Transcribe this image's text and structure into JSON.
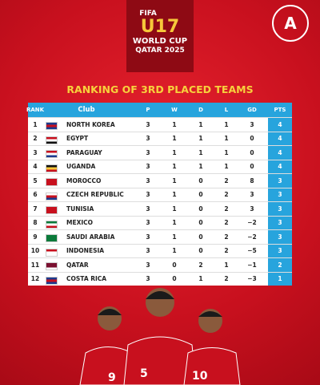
{
  "logo": {
    "brand": "FIFA",
    "event": "U17",
    "line1": "WORLD CUP",
    "line2": "QATAR 2025"
  },
  "title": "RANKING OF 3RD PLACED TEAMS",
  "table": {
    "columns": [
      "RANK",
      "Club",
      "P",
      "W",
      "D",
      "L",
      "GD",
      "PTS"
    ],
    "rows": [
      [
        1,
        "NORTH KOREA",
        3,
        1,
        1,
        1,
        3,
        4
      ],
      [
        2,
        "EGYPT",
        3,
        1,
        1,
        1,
        0,
        4
      ],
      [
        3,
        "PARAGUAY",
        3,
        1,
        1,
        1,
        0,
        4
      ],
      [
        4,
        "UGANDA",
        3,
        1,
        1,
        1,
        0,
        4
      ],
      [
        5,
        "MOROCCO",
        3,
        1,
        0,
        2,
        8,
        3
      ],
      [
        6,
        "CZECH REPUBLIC",
        3,
        1,
        0,
        2,
        3,
        3
      ],
      [
        7,
        "TUNISIA",
        3,
        1,
        0,
        2,
        3,
        3
      ],
      [
        8,
        "MEXICO",
        3,
        1,
        0,
        2,
        "−2",
        3
      ],
      [
        9,
        "SAUDI ARABIA",
        3,
        1,
        0,
        2,
        "−2",
        3
      ],
      [
        10,
        "INDONESIA",
        3,
        1,
        0,
        2,
        "−5",
        3
      ],
      [
        11,
        "QATAR",
        3,
        0,
        2,
        1,
        "−1",
        2
      ],
      [
        12,
        "COSTA RICA",
        3,
        0,
        1,
        2,
        "−3",
        1
      ]
    ]
  }
}
